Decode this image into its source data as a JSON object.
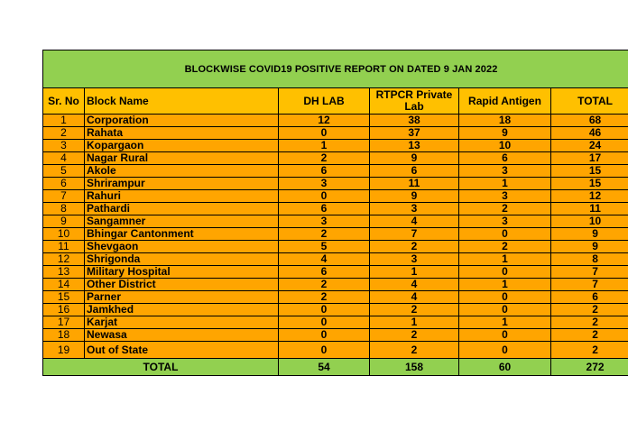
{
  "title": "BLOCKWISE COVID19 POSITIVE REPORT ON DATED 9 JAN 2022",
  "headers": {
    "sr_no": "Sr. No",
    "block_name": "Block Name",
    "dh_lab": "DH LAB",
    "rtpcr": "RTPCR Private Lab",
    "rapid": "Rapid Antigen",
    "total": "TOTAL"
  },
  "rows": [
    {
      "sr": "1",
      "block": "Corporation",
      "dh": "12",
      "rtpcr": "38",
      "rapid": "18",
      "total": "68"
    },
    {
      "sr": "2",
      "block": "Rahata",
      "dh": "0",
      "rtpcr": "37",
      "rapid": "9",
      "total": "46"
    },
    {
      "sr": "3",
      "block": "Kopargaon",
      "dh": "1",
      "rtpcr": "13",
      "rapid": "10",
      "total": "24"
    },
    {
      "sr": "4",
      "block": "Nagar Rural",
      "dh": "2",
      "rtpcr": "9",
      "rapid": "6",
      "total": "17"
    },
    {
      "sr": "5",
      "block": "Akole",
      "dh": "6",
      "rtpcr": "6",
      "rapid": "3",
      "total": "15"
    },
    {
      "sr": "6",
      "block": "Shrirampur",
      "dh": "3",
      "rtpcr": "11",
      "rapid": "1",
      "total": "15"
    },
    {
      "sr": "7",
      "block": "Rahuri",
      "dh": "0",
      "rtpcr": "9",
      "rapid": "3",
      "total": "12"
    },
    {
      "sr": "8",
      "block": "Pathardi",
      "dh": "6",
      "rtpcr": "3",
      "rapid": "2",
      "total": "11"
    },
    {
      "sr": "9",
      "block": "Sangamner",
      "dh": "3",
      "rtpcr": "4",
      "rapid": "3",
      "total": "10"
    },
    {
      "sr": "10",
      "block": "Bhingar Cantonment",
      "dh": "2",
      "rtpcr": "7",
      "rapid": "0",
      "total": "9"
    },
    {
      "sr": "11",
      "block": "Shevgaon",
      "dh": "5",
      "rtpcr": "2",
      "rapid": "2",
      "total": "9"
    },
    {
      "sr": "12",
      "block": "Shrigonda",
      "dh": "4",
      "rtpcr": "3",
      "rapid": "1",
      "total": "8"
    },
    {
      "sr": "13",
      "block": "Military Hospital",
      "dh": "6",
      "rtpcr": "1",
      "rapid": "0",
      "total": "7"
    },
    {
      "sr": "14",
      "block": "Other District",
      "dh": "2",
      "rtpcr": "4",
      "rapid": "1",
      "total": "7"
    },
    {
      "sr": "15",
      "block": "Parner",
      "dh": "2",
      "rtpcr": "4",
      "rapid": "0",
      "total": "6"
    },
    {
      "sr": "16",
      "block": "Jamkhed",
      "dh": "0",
      "rtpcr": "2",
      "rapid": "0",
      "total": "2"
    },
    {
      "sr": "17",
      "block": "Karjat",
      "dh": "0",
      "rtpcr": "1",
      "rapid": "1",
      "total": "2"
    },
    {
      "sr": "18",
      "block": "Newasa",
      "dh": "0",
      "rtpcr": "2",
      "rapid": "0",
      "total": "2"
    },
    {
      "sr": "19",
      "block": "Out of State",
      "dh": "0",
      "rtpcr": "2",
      "rapid": "0",
      "total": "2"
    }
  ],
  "totals": {
    "label": "TOTAL",
    "dh": "54",
    "rtpcr": "158",
    "rapid": "60",
    "total": "272"
  },
  "colors": {
    "title_bg": "#92d050",
    "header_bg": "#ffc000",
    "row_bg": "#ffa500",
    "total_bg": "#92d050"
  }
}
